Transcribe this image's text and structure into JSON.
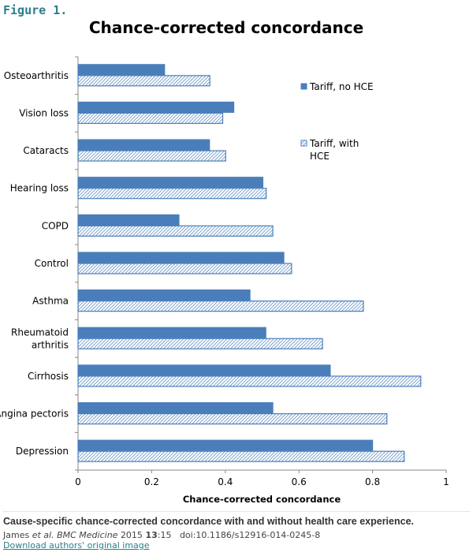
{
  "figure_label": "Figure 1.",
  "chart_data": {
    "type": "bar",
    "orientation": "horizontal",
    "title": "Chance-corrected concordance",
    "xlabel": "Chance-corrected concordance",
    "ylabel": "",
    "xlim": [
      0,
      1
    ],
    "xticks": [
      "0",
      "0.2",
      "0.4",
      "0.6",
      "0.8",
      "1"
    ],
    "grid": false,
    "legend_position": "right",
    "categories": [
      "Osteoarthritis",
      "Vision loss",
      "Cataracts",
      "Hearing loss",
      "COPD",
      "Control",
      "Asthma",
      "Rheumatoid arthritis",
      "Cirrhosis",
      "Angina pectoris",
      "Depression"
    ],
    "series": [
      {
        "name": "Tariff, no HCE",
        "color": "#4a7ebb",
        "pattern": "solid",
        "values": [
          0.235,
          0.423,
          0.357,
          0.502,
          0.274,
          0.559,
          0.467,
          0.51,
          0.685,
          0.529,
          0.8
        ]
      },
      {
        "name": "Tariff, with HCE",
        "color": "#4a7ebb",
        "pattern": "hatched",
        "values": [
          0.358,
          0.393,
          0.401,
          0.511,
          0.529,
          0.58,
          0.775,
          0.664,
          0.931,
          0.839,
          0.886
        ]
      }
    ]
  },
  "caption": "Cause-specific chance-corrected concordance with and without health care experience.",
  "citation": {
    "authors": "James",
    "etal": "et al.",
    "journal": "BMC Medicine",
    "year": "2015",
    "volume": "13",
    "page": ":15",
    "doi": "doi:10.1186/s12916-014-0245-8"
  },
  "download_link": "Download authors' original image"
}
